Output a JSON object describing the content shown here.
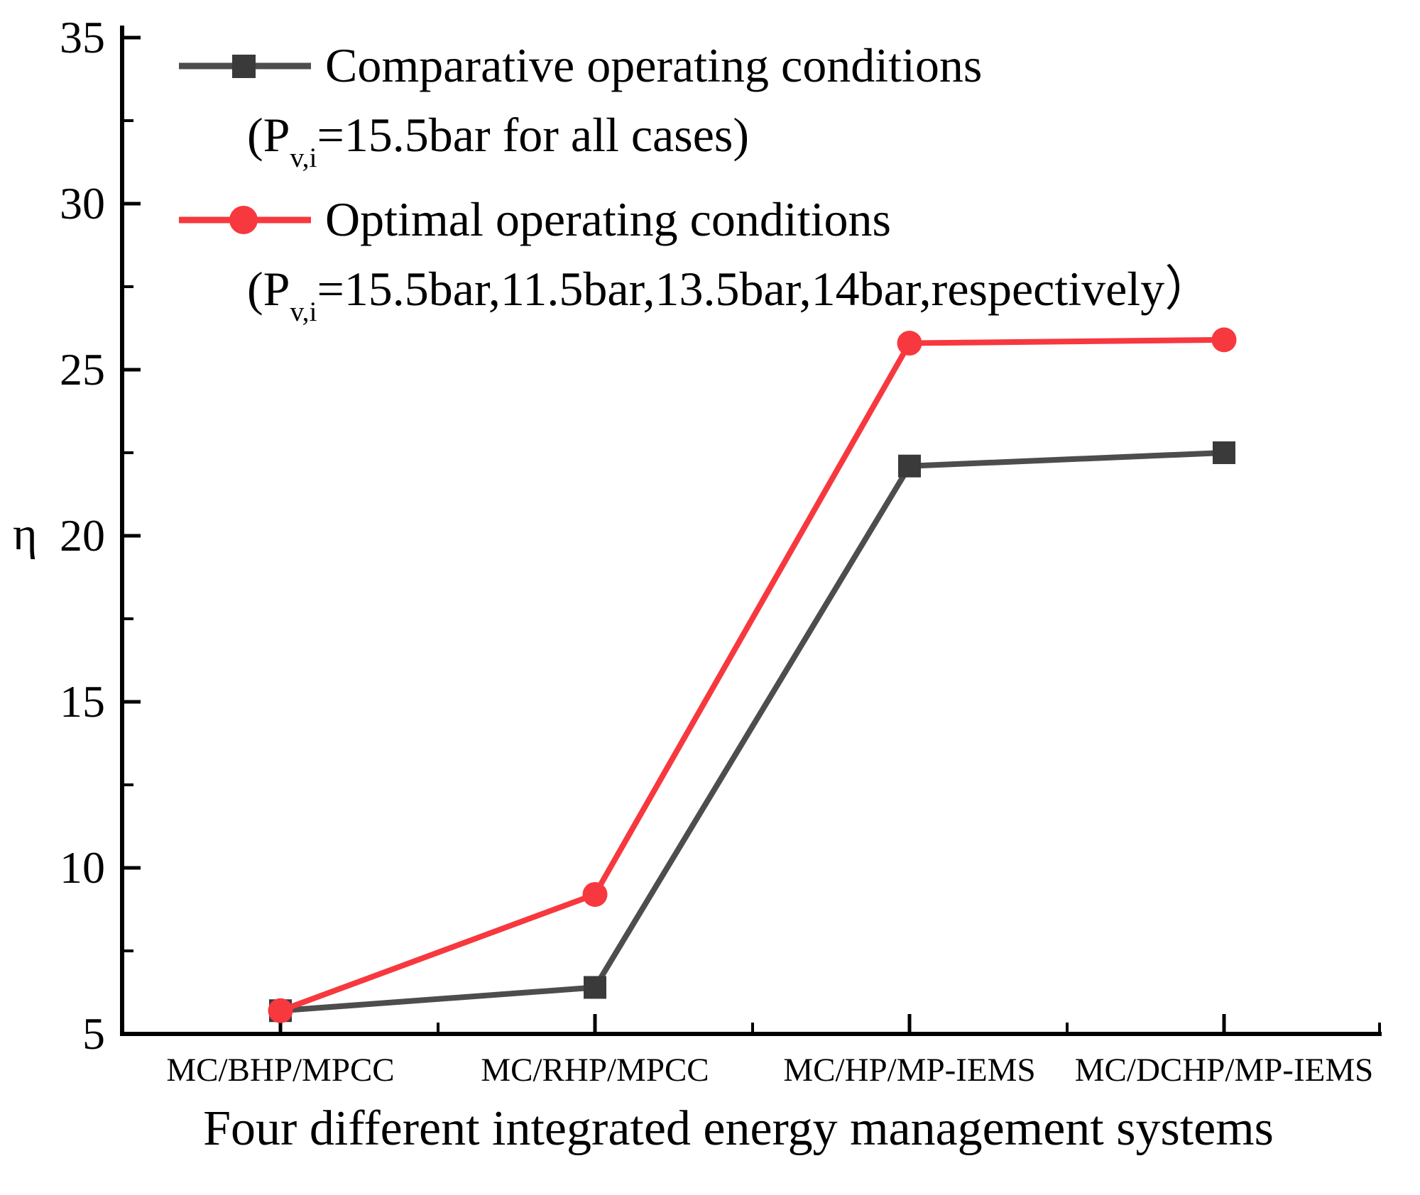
{
  "figure": {
    "ylabel": "η",
    "xlabel": "Four different integrated energy management systems"
  },
  "legend": {
    "items": [
      {
        "label": "Comparative operating conditions",
        "detail_open": "(P",
        "detail_sub": "v,i",
        "detail_rest": "=15.5bar for all cases)",
        "marker": "square",
        "marker_color": "#3a3a3a",
        "line_color": "#4d4d4d"
      },
      {
        "label": "Optimal operating conditions",
        "detail_open": "(P",
        "detail_sub": "v,i",
        "detail_rest": "=15.5bar,11.5bar,13.5bar,14bar,respectively）",
        "marker": "circle",
        "marker_color": "#f7383e",
        "line_color": "#f7383e"
      }
    ]
  },
  "chart_data": {
    "type": "line",
    "title": "",
    "xlabel": "Four different integrated energy management systems",
    "ylabel": "η",
    "categories": [
      "MC/BHP/MPCC",
      "MC/RHP/MPCC",
      "MC/HP/MP-IEMS",
      "MC/DCHP/MP-IEMS"
    ],
    "series": [
      {
        "name": "Comparative operating conditions (Pv,i=15.5bar for all cases)",
        "marker": "square",
        "marker_color": "#3a3a3a",
        "line_color": "#4d4d4d",
        "values": [
          5.7,
          6.4,
          22.1,
          22.5
        ]
      },
      {
        "name": "Optimal operating conditions (Pv,i=15.5bar,11.5bar,13.5bar,14bar,respectively)",
        "marker": "circle",
        "marker_color": "#f7383e",
        "line_color": "#f7383e",
        "values": [
          5.7,
          9.2,
          25.8,
          25.9
        ]
      }
    ],
    "ylim": [
      5,
      35
    ],
    "yticks": [
      5,
      10,
      15,
      20,
      25,
      30,
      35
    ],
    "y_minor_step": 2.5,
    "grid": false,
    "legend_position": "top-left",
    "axis_color": "#000000"
  }
}
